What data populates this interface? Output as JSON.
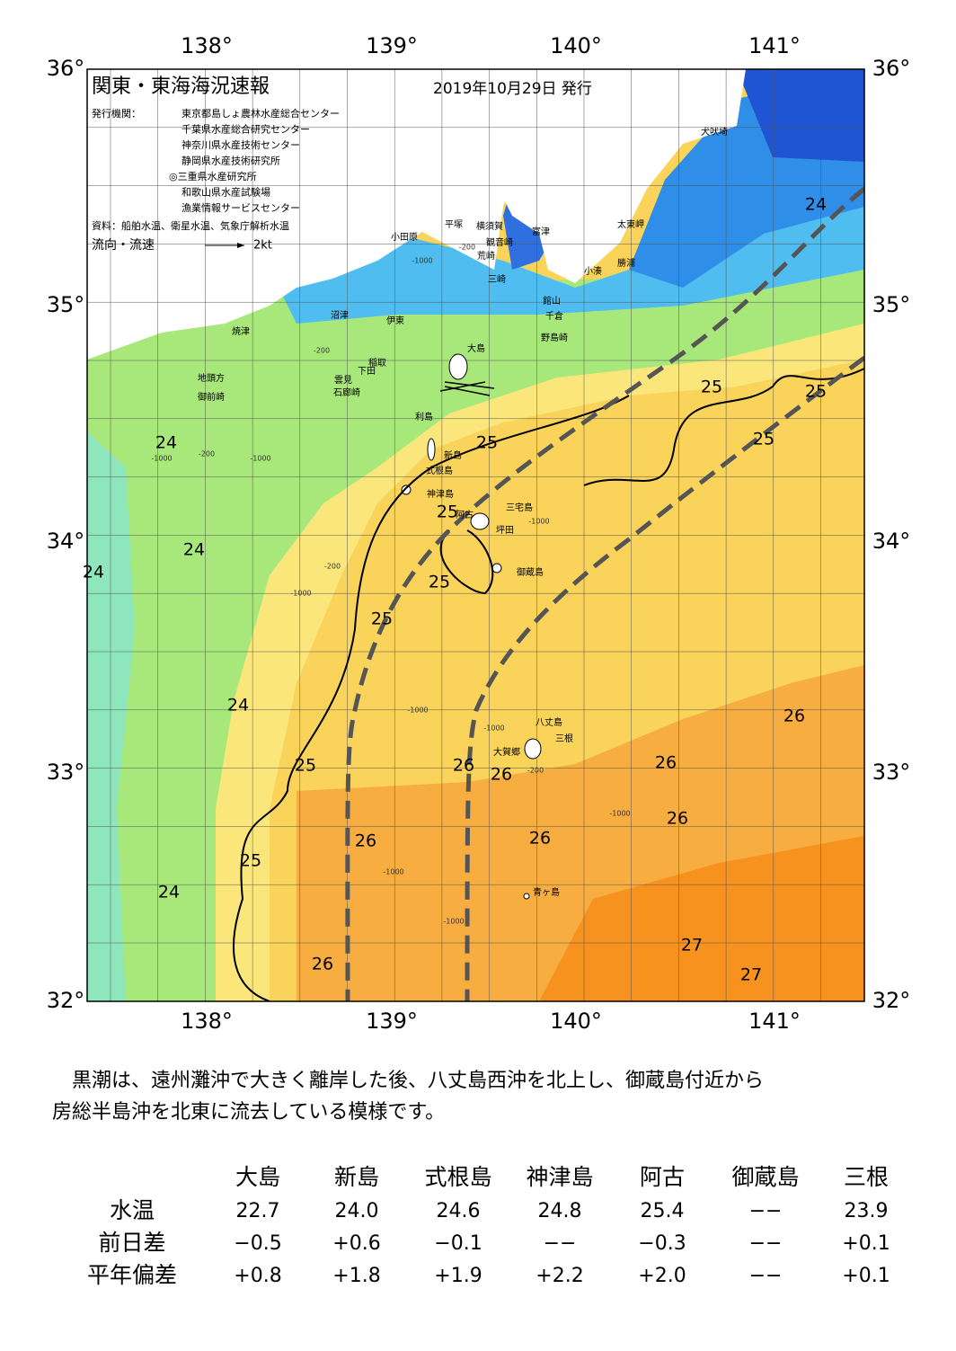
{
  "header": {
    "title": "関東・東海海況速報",
    "date": "2019年10月29日 発行",
    "agency_label": "発行機関：",
    "agencies": [
      "東京都島しょ農林水産総合センター",
      "千葉県水産総合研究センター",
      "神奈川県水産技術センター",
      "静岡県水産技術研究所",
      "◎三重県水産研究所",
      "和歌山県水産試験場",
      "漁業情報サービスセンター"
    ],
    "source": "資料：船舶水温、衛星水温、気象庁解析水温",
    "legend_label": "流向・流速",
    "legend_speed": "2kt"
  },
  "map": {
    "lat_labels": [
      "36°",
      "35°",
      "34°",
      "33°",
      "32°"
    ],
    "lon_labels": [
      "138°",
      "139°",
      "140°",
      "141°"
    ],
    "places": [
      "犬吠埼",
      "太東岬",
      "勝浦",
      "小湊",
      "富津",
      "横須賀",
      "観音崎",
      "荒崎",
      "三崎",
      "館山",
      "千倉",
      "野島崎",
      "平塚",
      "小田原",
      "沼津",
      "伊東",
      "焼津",
      "稲取",
      "下田",
      "雲見",
      "石廊崎",
      "地頭方",
      "御前崎",
      "大島",
      "利島",
      "新島",
      "式根島",
      "神津島",
      "三宅島",
      "阿古",
      "坪田",
      "御蔵島",
      "八丈島",
      "三根",
      "大賀郷",
      "青ヶ島"
    ],
    "temp_labels": [
      "24",
      "24",
      "24",
      "24",
      "24",
      "24",
      "25",
      "25",
      "25",
      "25",
      "25",
      "25",
      "25",
      "25",
      "25",
      "26",
      "26",
      "26",
      "26",
      "26",
      "26",
      "26",
      "26",
      "27",
      "27"
    ],
    "depth_labels": [
      "-1000",
      "-200",
      "-200",
      "-1000",
      "-1000",
      "-200",
      "-1000",
      "-200",
      "-1000",
      "-1000",
      "-1000",
      "-1000",
      "-200",
      "-1000",
      "-1000"
    ]
  },
  "summary": {
    "lines": [
      "黒潮は、遠州灘沖で大きく離岸した後、八丈島西沖を北上し、御蔵島付近から",
      "房総半島沖を北東に流去している模様です。"
    ]
  },
  "table": {
    "header": [
      "大島",
      "新島",
      "式根島",
      "神津島",
      "阿古",
      "御蔵島",
      "三根"
    ],
    "rows": [
      [
        "水温",
        "22.7",
        "24.0",
        "24.6",
        "24.8",
        "25.4",
        "−−",
        "23.9"
      ],
      [
        "前日差",
        "−0.5",
        "+0.6",
        "−0.1",
        "−−",
        "−0.3",
        "−−",
        "+0.1"
      ],
      [
        "平年偏差",
        "+0.8",
        "+1.8",
        "+1.9",
        "+2.2",
        "+2.0",
        "−−",
        "+0.1"
      ]
    ]
  }
}
